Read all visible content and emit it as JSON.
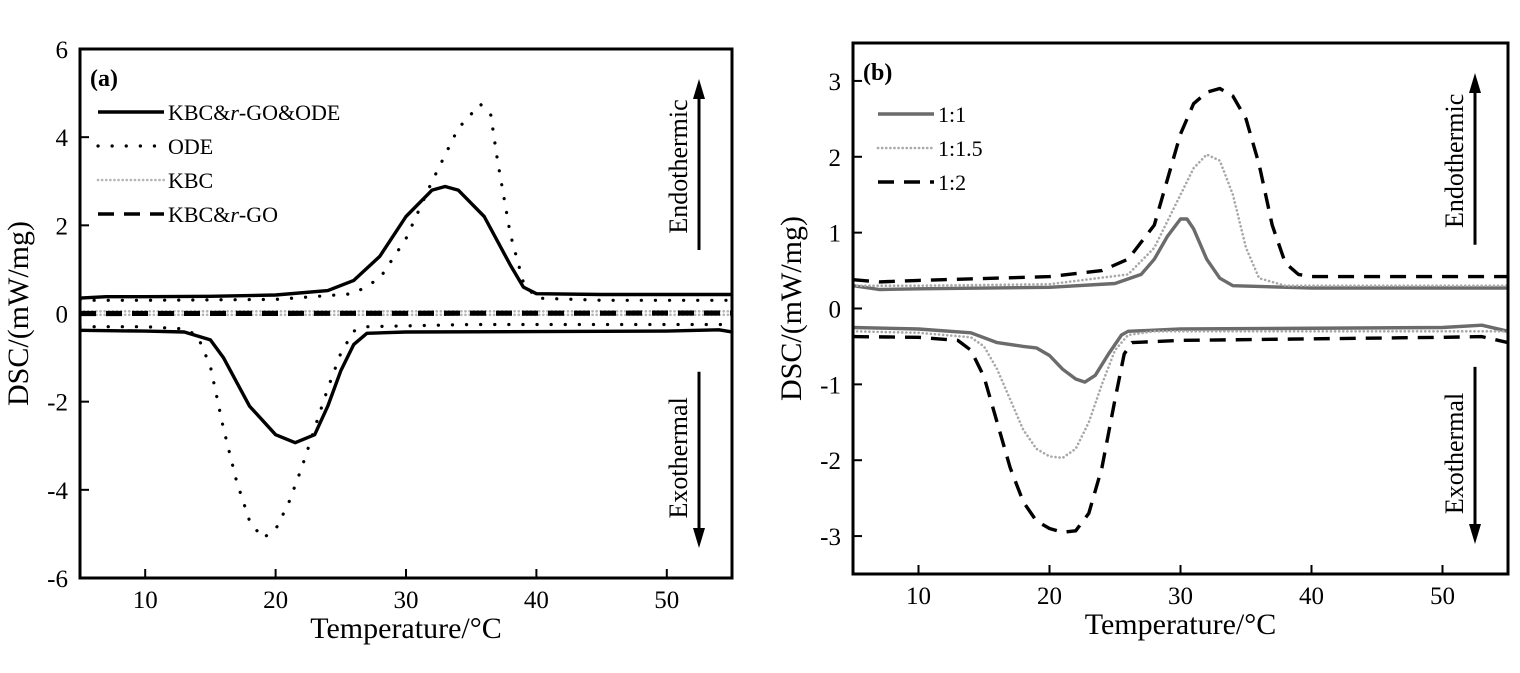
{
  "chart_data": [
    {
      "type": "line",
      "panel_label": "(a)",
      "xlabel": "Temperature/°C",
      "ylabel": "DSC/(mW/mg)",
      "xlim": [
        5,
        55
      ],
      "ylim": [
        -6,
        6
      ],
      "xticks": [
        10,
        20,
        30,
        40,
        50
      ],
      "yticks": [
        6,
        4,
        2,
        0,
        -2,
        -4,
        -6
      ],
      "ytick_labels": [
        "6",
        "4",
        "2",
        "0",
        "-2",
        "-4",
        "-6"
      ],
      "grid": false,
      "legend": "top-left",
      "annotations": {
        "up": "Endothermic",
        "down": "Exothermal"
      },
      "series": [
        {
          "name": "KBC&r-GO&ODE",
          "legend_prefix": "KBC&",
          "legend_italic": "r",
          "legend_suffix": "-GO&ODE",
          "style": "solid",
          "color": "#000000",
          "segments": [
            [
              [
                5,
                0.35
              ],
              [
                7,
                0.38
              ],
              [
                10,
                0.38
              ],
              [
                15,
                0.39
              ],
              [
                20,
                0.42
              ],
              [
                24,
                0.52
              ],
              [
                26,
                0.75
              ],
              [
                28,
                1.3
              ],
              [
                30,
                2.2
              ],
              [
                32,
                2.8
              ],
              [
                33,
                2.88
              ],
              [
                34,
                2.8
              ],
              [
                36,
                2.2
              ],
              [
                38,
                1.1
              ],
              [
                39,
                0.6
              ],
              [
                40,
                0.45
              ],
              [
                45,
                0.43
              ],
              [
                55,
                0.43
              ]
            ],
            [
              [
                5,
                -0.38
              ],
              [
                10,
                -0.4
              ],
              [
                13,
                -0.42
              ],
              [
                15,
                -0.6
              ],
              [
                16,
                -1.0
              ],
              [
                18,
                -2.1
              ],
              [
                20,
                -2.75
              ],
              [
                21.5,
                -2.93
              ],
              [
                23,
                -2.75
              ],
              [
                24,
                -2.1
              ],
              [
                25,
                -1.3
              ],
              [
                26,
                -0.7
              ],
              [
                27,
                -0.45
              ],
              [
                30,
                -0.42
              ],
              [
                40,
                -0.41
              ],
              [
                50,
                -0.4
              ],
              [
                54,
                -0.37
              ],
              [
                55,
                -0.42
              ]
            ]
          ]
        },
        {
          "name": "ODE",
          "legend_prefix": "ODE",
          "legend_italic": "",
          "legend_suffix": "",
          "style": "dotted",
          "color": "#000000",
          "segments": [
            [
              [
                5,
                0.3
              ],
              [
                10,
                0.3
              ],
              [
                20,
                0.32
              ],
              [
                26,
                0.45
              ],
              [
                28,
                0.8
              ],
              [
                30,
                1.7
              ],
              [
                32,
                3.0
              ],
              [
                34,
                4.2
              ],
              [
                35.7,
                4.75
              ],
              [
                36.5,
                4.5
              ],
              [
                37,
                3.5
              ],
              [
                38,
                1.8
              ],
              [
                39,
                0.7
              ],
              [
                40,
                0.35
              ],
              [
                45,
                0.3
              ],
              [
                55,
                0.3
              ]
            ],
            [
              [
                5,
                -0.3
              ],
              [
                10,
                -0.3
              ],
              [
                13,
                -0.35
              ],
              [
                14,
                -0.5
              ],
              [
                15,
                -1.2
              ],
              [
                16,
                -2.6
              ],
              [
                17,
                -3.8
              ],
              [
                18,
                -4.7
              ],
              [
                19,
                -5.1
              ],
              [
                20,
                -4.9
              ],
              [
                21,
                -4.3
              ],
              [
                22,
                -3.5
              ],
              [
                23,
                -2.6
              ],
              [
                24,
                -1.7
              ],
              [
                25,
                -0.9
              ],
              [
                26,
                -0.4
              ],
              [
                27,
                -0.3
              ],
              [
                35,
                -0.25
              ],
              [
                55,
                -0.25
              ]
            ]
          ]
        },
        {
          "name": "KBC",
          "legend_prefix": "KBC",
          "legend_italic": "",
          "legend_suffix": "",
          "style": "fine-dotted",
          "color": "#b5b5b5",
          "segments": [
            [
              [
                5,
                0.05
              ],
              [
                55,
                0.05
              ]
            ],
            [
              [
                5,
                -0.03
              ],
              [
                55,
                -0.03
              ]
            ]
          ]
        },
        {
          "name": "KBC&r-GO",
          "legend_prefix": "KBC&",
          "legend_italic": "r",
          "legend_suffix": "-GO",
          "style": "dashed",
          "color": "#000000",
          "segments": [
            [
              [
                5,
                0.02
              ],
              [
                55,
                0.03
              ]
            ],
            [
              [
                5,
                -0.02
              ],
              [
                55,
                -0.01
              ]
            ]
          ]
        }
      ]
    },
    {
      "type": "line",
      "panel_label": "(b)",
      "xlabel": "Temperature/°C",
      "ylabel": "DSC/(mW/mg)",
      "xlim": [
        5,
        55
      ],
      "ylim": [
        -3.5,
        3.5
      ],
      "xticks": [
        10,
        20,
        30,
        40,
        50
      ],
      "yticks": [
        3,
        2,
        1,
        0,
        -1,
        -2,
        -3
      ],
      "ytick_labels": [
        "3",
        "2",
        "1",
        "0",
        "-1",
        "-2",
        "-3"
      ],
      "grid": false,
      "legend": "top-left",
      "annotations": {
        "up": "Endothermic",
        "down": "Exothermal"
      },
      "series": [
        {
          "name": "1:1",
          "legend_prefix": "1:1",
          "legend_italic": "",
          "legend_suffix": "",
          "style": "solid",
          "color": "#6b6b6b",
          "segments": [
            [
              [
                5,
                0.3
              ],
              [
                7,
                0.25
              ],
              [
                10,
                0.26
              ],
              [
                20,
                0.28
              ],
              [
                25,
                0.33
              ],
              [
                27,
                0.45
              ],
              [
                28,
                0.65
              ],
              [
                29,
                0.95
              ],
              [
                30,
                1.18
              ],
              [
                30.5,
                1.18
              ],
              [
                31,
                1.05
              ],
              [
                32,
                0.65
              ],
              [
                33,
                0.4
              ],
              [
                34,
                0.3
              ],
              [
                40,
                0.27
              ],
              [
                55,
                0.27
              ]
            ],
            [
              [
                5,
                -0.25
              ],
              [
                10,
                -0.27
              ],
              [
                14,
                -0.32
              ],
              [
                16,
                -0.45
              ],
              [
                18,
                -0.5
              ],
              [
                19,
                -0.52
              ],
              [
                20,
                -0.62
              ],
              [
                21,
                -0.8
              ],
              [
                22,
                -0.93
              ],
              [
                22.7,
                -0.97
              ],
              [
                23.5,
                -0.88
              ],
              [
                24.5,
                -0.6
              ],
              [
                25.5,
                -0.35
              ],
              [
                26,
                -0.3
              ],
              [
                30,
                -0.27
              ],
              [
                50,
                -0.25
              ],
              [
                53,
                -0.22
              ],
              [
                55,
                -0.3
              ]
            ]
          ]
        },
        {
          "name": "1:1.5",
          "legend_prefix": "1:1.5",
          "legend_italic": "",
          "legend_suffix": "",
          "style": "fine-dotted",
          "color": "#a8a8a8",
          "segments": [
            [
              [
                5,
                0.3
              ],
              [
                10,
                0.3
              ],
              [
                20,
                0.32
              ],
              [
                26,
                0.45
              ],
              [
                28,
                0.8
              ],
              [
                30,
                1.5
              ],
              [
                31,
                1.85
              ],
              [
                32,
                2.03
              ],
              [
                33,
                1.95
              ],
              [
                34,
                1.5
              ],
              [
                35,
                0.8
              ],
              [
                36,
                0.4
              ],
              [
                38,
                0.3
              ],
              [
                55,
                0.3
              ]
            ],
            [
              [
                5,
                -0.3
              ],
              [
                10,
                -0.32
              ],
              [
                14,
                -0.38
              ],
              [
                15,
                -0.5
              ],
              [
                16,
                -0.8
              ],
              [
                17,
                -1.2
              ],
              [
                18,
                -1.6
              ],
              [
                19,
                -1.85
              ],
              [
                20,
                -1.95
              ],
              [
                21,
                -1.97
              ],
              [
                22,
                -1.85
              ],
              [
                23,
                -1.5
              ],
              [
                24,
                -1.0
              ],
              [
                25,
                -0.55
              ],
              [
                26,
                -0.35
              ],
              [
                28,
                -0.3
              ],
              [
                55,
                -0.3
              ]
            ]
          ]
        },
        {
          "name": "1:2",
          "legend_prefix": "1:2",
          "legend_italic": "",
          "legend_suffix": "",
          "style": "dashed",
          "color": "#000000",
          "segments": [
            [
              [
                5,
                0.38
              ],
              [
                7,
                0.35
              ],
              [
                10,
                0.37
              ],
              [
                20,
                0.42
              ],
              [
                24,
                0.5
              ],
              [
                26,
                0.65
              ],
              [
                28,
                1.1
              ],
              [
                29,
                1.7
              ],
              [
                30,
                2.3
              ],
              [
                31,
                2.7
              ],
              [
                32,
                2.85
              ],
              [
                33,
                2.9
              ],
              [
                34,
                2.8
              ],
              [
                35,
                2.5
              ],
              [
                36,
                1.9
              ],
              [
                37,
                1.1
              ],
              [
                38,
                0.6
              ],
              [
                39,
                0.45
              ],
              [
                40,
                0.42
              ],
              [
                55,
                0.42
              ]
            ],
            [
              [
                5,
                -0.37
              ],
              [
                10,
                -0.38
              ],
              [
                13,
                -0.42
              ],
              [
                14,
                -0.55
              ],
              [
                15,
                -0.9
              ],
              [
                16,
                -1.5
              ],
              [
                17,
                -2.1
              ],
              [
                18,
                -2.55
              ],
              [
                19,
                -2.8
              ],
              [
                20,
                -2.9
              ],
              [
                21,
                -2.95
              ],
              [
                22,
                -2.93
              ],
              [
                23,
                -2.7
              ],
              [
                24,
                -2.1
              ],
              [
                25,
                -1.2
              ],
              [
                25.7,
                -0.6
              ],
              [
                26.3,
                -0.45
              ],
              [
                30,
                -0.42
              ],
              [
                50,
                -0.38
              ],
              [
                53,
                -0.37
              ],
              [
                55,
                -0.45
              ]
            ]
          ]
        }
      ]
    }
  ]
}
